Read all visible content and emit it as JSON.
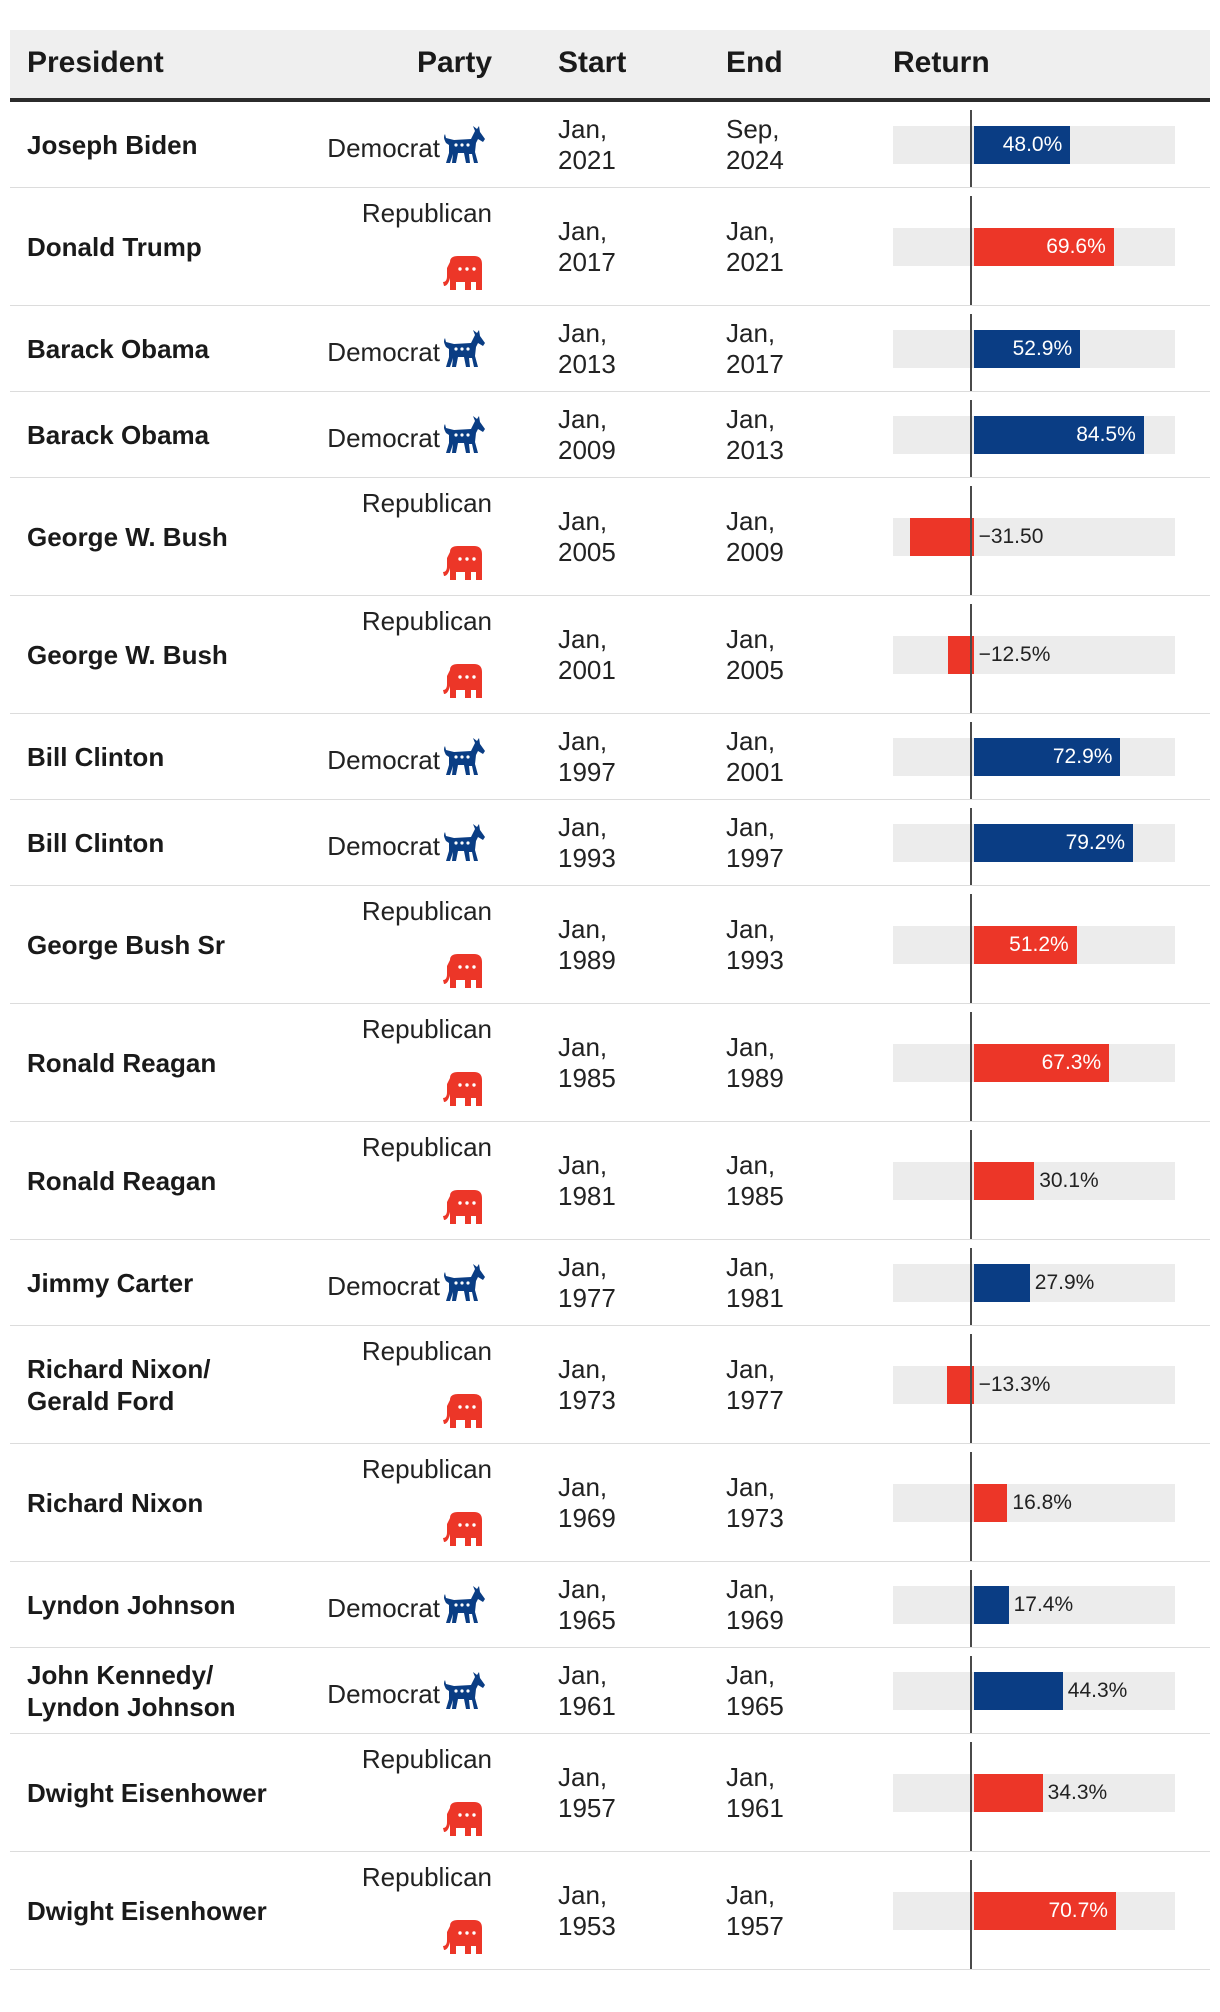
{
  "header": {
    "president": "President",
    "party": "Party",
    "start": "Start",
    "end": "End",
    "return": "Return"
  },
  "colors": {
    "democrat": "#0a3d84",
    "republican": "#ec3628"
  },
  "chart_data": {
    "type": "bar",
    "orientation": "horizontal",
    "xlim": [
      -40,
      100
    ],
    "title": "",
    "categories": [
      "Joseph Biden",
      "Donald Trump",
      "Barack Obama",
      "Barack Obama",
      "George W. Bush",
      "George W. Bush",
      "Bill Clinton",
      "Bill Clinton",
      "George Bush Sr",
      "Ronald Reagan",
      "Ronald Reagan",
      "Jimmy Carter",
      "Richard Nixon/ Gerald Ford",
      "Richard Nixon",
      "Lyndon Johnson",
      "John Kennedy/ Lyndon Johnson",
      "Dwight Eisenhower",
      "Dwight Eisenhower"
    ],
    "values": [
      48.0,
      69.6,
      52.9,
      84.5,
      -31.5,
      -12.5,
      72.9,
      79.2,
      51.2,
      67.3,
      30.1,
      27.9,
      -13.3,
      16.8,
      17.4,
      44.3,
      34.3,
      70.7
    ],
    "rows": [
      {
        "president": "Joseph Biden",
        "party": "Democrat",
        "start": [
          "Jan,",
          "2021"
        ],
        "end": [
          "Sep,",
          "2024"
        ],
        "value": 48.0,
        "label": "48.0%"
      },
      {
        "president": "Donald Trump",
        "party": "Republican",
        "start": [
          "Jan,",
          "2017"
        ],
        "end": [
          "Jan,",
          "2021"
        ],
        "value": 69.6,
        "label": "69.6%"
      },
      {
        "president": "Barack Obama",
        "party": "Democrat",
        "start": [
          "Jan,",
          "2013"
        ],
        "end": [
          "Jan,",
          "2017"
        ],
        "value": 52.9,
        "label": "52.9%"
      },
      {
        "president": "Barack Obama",
        "party": "Democrat",
        "start": [
          "Jan,",
          "2009"
        ],
        "end": [
          "Jan,",
          "2013"
        ],
        "value": 84.5,
        "label": "84.5%"
      },
      {
        "president": "George W. Bush",
        "party": "Republican",
        "start": [
          "Jan,",
          "2005"
        ],
        "end": [
          "Jan,",
          "2009"
        ],
        "value": -31.5,
        "label": "−31.50"
      },
      {
        "president": "George W. Bush",
        "party": "Republican",
        "start": [
          "Jan,",
          "2001"
        ],
        "end": [
          "Jan,",
          "2005"
        ],
        "value": -12.5,
        "label": "−12.5%"
      },
      {
        "president": "Bill Clinton",
        "party": "Democrat",
        "start": [
          "Jan,",
          "1997"
        ],
        "end": [
          "Jan,",
          "2001"
        ],
        "value": 72.9,
        "label": "72.9%"
      },
      {
        "president": "Bill Clinton",
        "party": "Democrat",
        "start": [
          "Jan,",
          "1993"
        ],
        "end": [
          "Jan,",
          "1997"
        ],
        "value": 79.2,
        "label": "79.2%"
      },
      {
        "president": "George Bush Sr",
        "party": "Republican",
        "start": [
          "Jan,",
          "1989"
        ],
        "end": [
          "Jan,",
          "1993"
        ],
        "value": 51.2,
        "label": "51.2%"
      },
      {
        "president": "Ronald Reagan",
        "party": "Republican",
        "start": [
          "Jan,",
          "1985"
        ],
        "end": [
          "Jan,",
          "1989"
        ],
        "value": 67.3,
        "label": "67.3%"
      },
      {
        "president": "Ronald Reagan",
        "party": "Republican",
        "start": [
          "Jan,",
          "1981"
        ],
        "end": [
          "Jan,",
          "1985"
        ],
        "value": 30.1,
        "label": "30.1%"
      },
      {
        "president": "Jimmy Carter",
        "party": "Democrat",
        "start": [
          "Jan,",
          "1977"
        ],
        "end": [
          "Jan,",
          "1981"
        ],
        "value": 27.9,
        "label": "27.9%"
      },
      {
        "president": "Richard Nixon/ Gerald Ford",
        "party": "Republican",
        "start": [
          "Jan,",
          "1973"
        ],
        "end": [
          "Jan,",
          "1977"
        ],
        "value": -13.3,
        "label": "−13.3%"
      },
      {
        "president": "Richard Nixon",
        "party": "Republican",
        "start": [
          "Jan,",
          "1969"
        ],
        "end": [
          "Jan,",
          "1973"
        ],
        "value": 16.8,
        "label": "16.8%"
      },
      {
        "president": "Lyndon Johnson",
        "party": "Democrat",
        "start": [
          "Jan,",
          "1965"
        ],
        "end": [
          "Jan,",
          "1969"
        ],
        "value": 17.4,
        "label": "17.4%"
      },
      {
        "president": "John Kennedy/ Lyndon Johnson",
        "party": "Democrat",
        "start": [
          "Jan,",
          "1961"
        ],
        "end": [
          "Jan,",
          "1965"
        ],
        "value": 44.3,
        "label": "44.3%"
      },
      {
        "president": "Dwight Eisenhower",
        "party": "Republican",
        "start": [
          "Jan,",
          "1957"
        ],
        "end": [
          "Jan,",
          "1961"
        ],
        "value": 34.3,
        "label": "34.3%"
      },
      {
        "president": "Dwight Eisenhower",
        "party": "Republican",
        "start": [
          "Jan,",
          "1953"
        ],
        "end": [
          "Jan,",
          "1957"
        ],
        "value": 70.7,
        "label": "70.7%"
      }
    ]
  }
}
